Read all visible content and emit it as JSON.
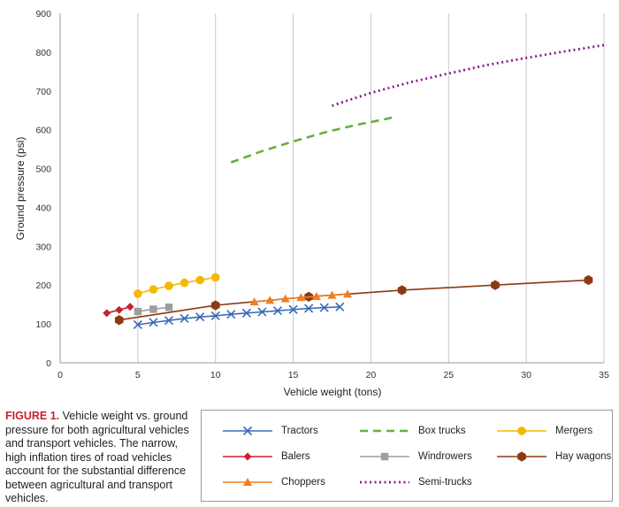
{
  "chart_data": {
    "type": "line",
    "xlabel": "Vehicle weight (tons)",
    "ylabel": "Ground pressure (psi)",
    "xlim": [
      0,
      35
    ],
    "ylim": [
      0,
      900
    ],
    "x_ticks": [
      0,
      5,
      10,
      15,
      20,
      25,
      30,
      35
    ],
    "y_ticks": [
      0,
      100,
      200,
      300,
      400,
      500,
      600,
      700,
      800,
      900
    ],
    "grid": "vertical",
    "series": [
      {
        "name": "Tractors",
        "color": "#3a6cb5",
        "marker": "x",
        "dash": "solid",
        "x": [
          5,
          6,
          7,
          8,
          9,
          10,
          11,
          12,
          13,
          14,
          15,
          16,
          17,
          18
        ],
        "y": [
          98,
          104,
          109,
          114,
          118,
          121,
          125,
          128,
          131,
          134,
          137,
          140,
          142,
          144
        ]
      },
      {
        "name": "Box trucks",
        "color": "#6aad3a",
        "marker": "none",
        "dash": "dashed",
        "x": [
          11,
          13,
          15,
          17,
          19,
          21,
          21.5
        ],
        "y": [
          516,
          545,
          570,
          593,
          612,
          628,
          633
        ]
      },
      {
        "name": "Mergers",
        "color": "#f5b800",
        "marker": "circle",
        "dash": "solid",
        "x": [
          5,
          6,
          7,
          8,
          9,
          10
        ],
        "y": [
          178,
          189,
          198,
          206,
          213,
          220
        ]
      },
      {
        "name": "Balers",
        "color": "#c8202f",
        "marker": "diamond",
        "dash": "solid",
        "x": [
          3,
          3.8,
          4.5
        ],
        "y": [
          128,
          136,
          144
        ]
      },
      {
        "name": "Windrowers",
        "color": "#9e9e9e",
        "marker": "square",
        "dash": "solid",
        "x": [
          5,
          6,
          7
        ],
        "y": [
          132,
          138,
          143
        ]
      },
      {
        "name": "Hay wagons",
        "color": "#8b3a12",
        "marker": "hexagon",
        "dash": "solid",
        "x": [
          3.8,
          10,
          16,
          22,
          28,
          34
        ],
        "y": [
          110,
          148,
          170,
          187,
          200,
          213
        ]
      },
      {
        "name": "Choppers",
        "color": "#ee7f22",
        "marker": "triangle",
        "dash": "solid",
        "x": [
          12.5,
          13.5,
          14.5,
          15.5,
          16.5,
          17.5,
          18.5
        ],
        "y": [
          157,
          161,
          165,
          168,
          171,
          174,
          177
        ]
      },
      {
        "name": "Semi-trucks",
        "color": "#8d1a8e",
        "marker": "none",
        "dash": "dotted",
        "x": [
          17.5,
          20,
          22.5,
          25,
          27.5,
          30,
          32.5,
          35
        ],
        "y": [
          662,
          695,
          722,
          745,
          767,
          785,
          802,
          818
        ]
      }
    ]
  },
  "caption": {
    "label": "FIGURE 1.",
    "text": " Vehicle weight vs. ground pressure for both agricultural vehicles and transport vehicles. The narrow, high inflation tires of road vehicles account for the substantial difference between agricultural and transport vehicles."
  },
  "legend": [
    {
      "name": "Tractors",
      "color": "#3a6cb5",
      "marker": "x",
      "dash": "solid"
    },
    {
      "name": "Box trucks",
      "color": "#6aad3a",
      "marker": "none",
      "dash": "dashed"
    },
    {
      "name": "Mergers",
      "color": "#f5b800",
      "marker": "circle",
      "dash": "solid"
    },
    {
      "name": "Balers",
      "color": "#c8202f",
      "marker": "diamond",
      "dash": "solid"
    },
    {
      "name": "Windrowers",
      "color": "#9e9e9e",
      "marker": "square",
      "dash": "solid"
    },
    {
      "name": "Hay wagons",
      "color": "#8b3a12",
      "marker": "hexagon",
      "dash": "solid"
    },
    {
      "name": "Choppers",
      "color": "#ee7f22",
      "marker": "triangle",
      "dash": "solid"
    },
    {
      "name": "Semi-trucks",
      "color": "#8d1a8e",
      "marker": "none",
      "dash": "dotted"
    }
  ]
}
